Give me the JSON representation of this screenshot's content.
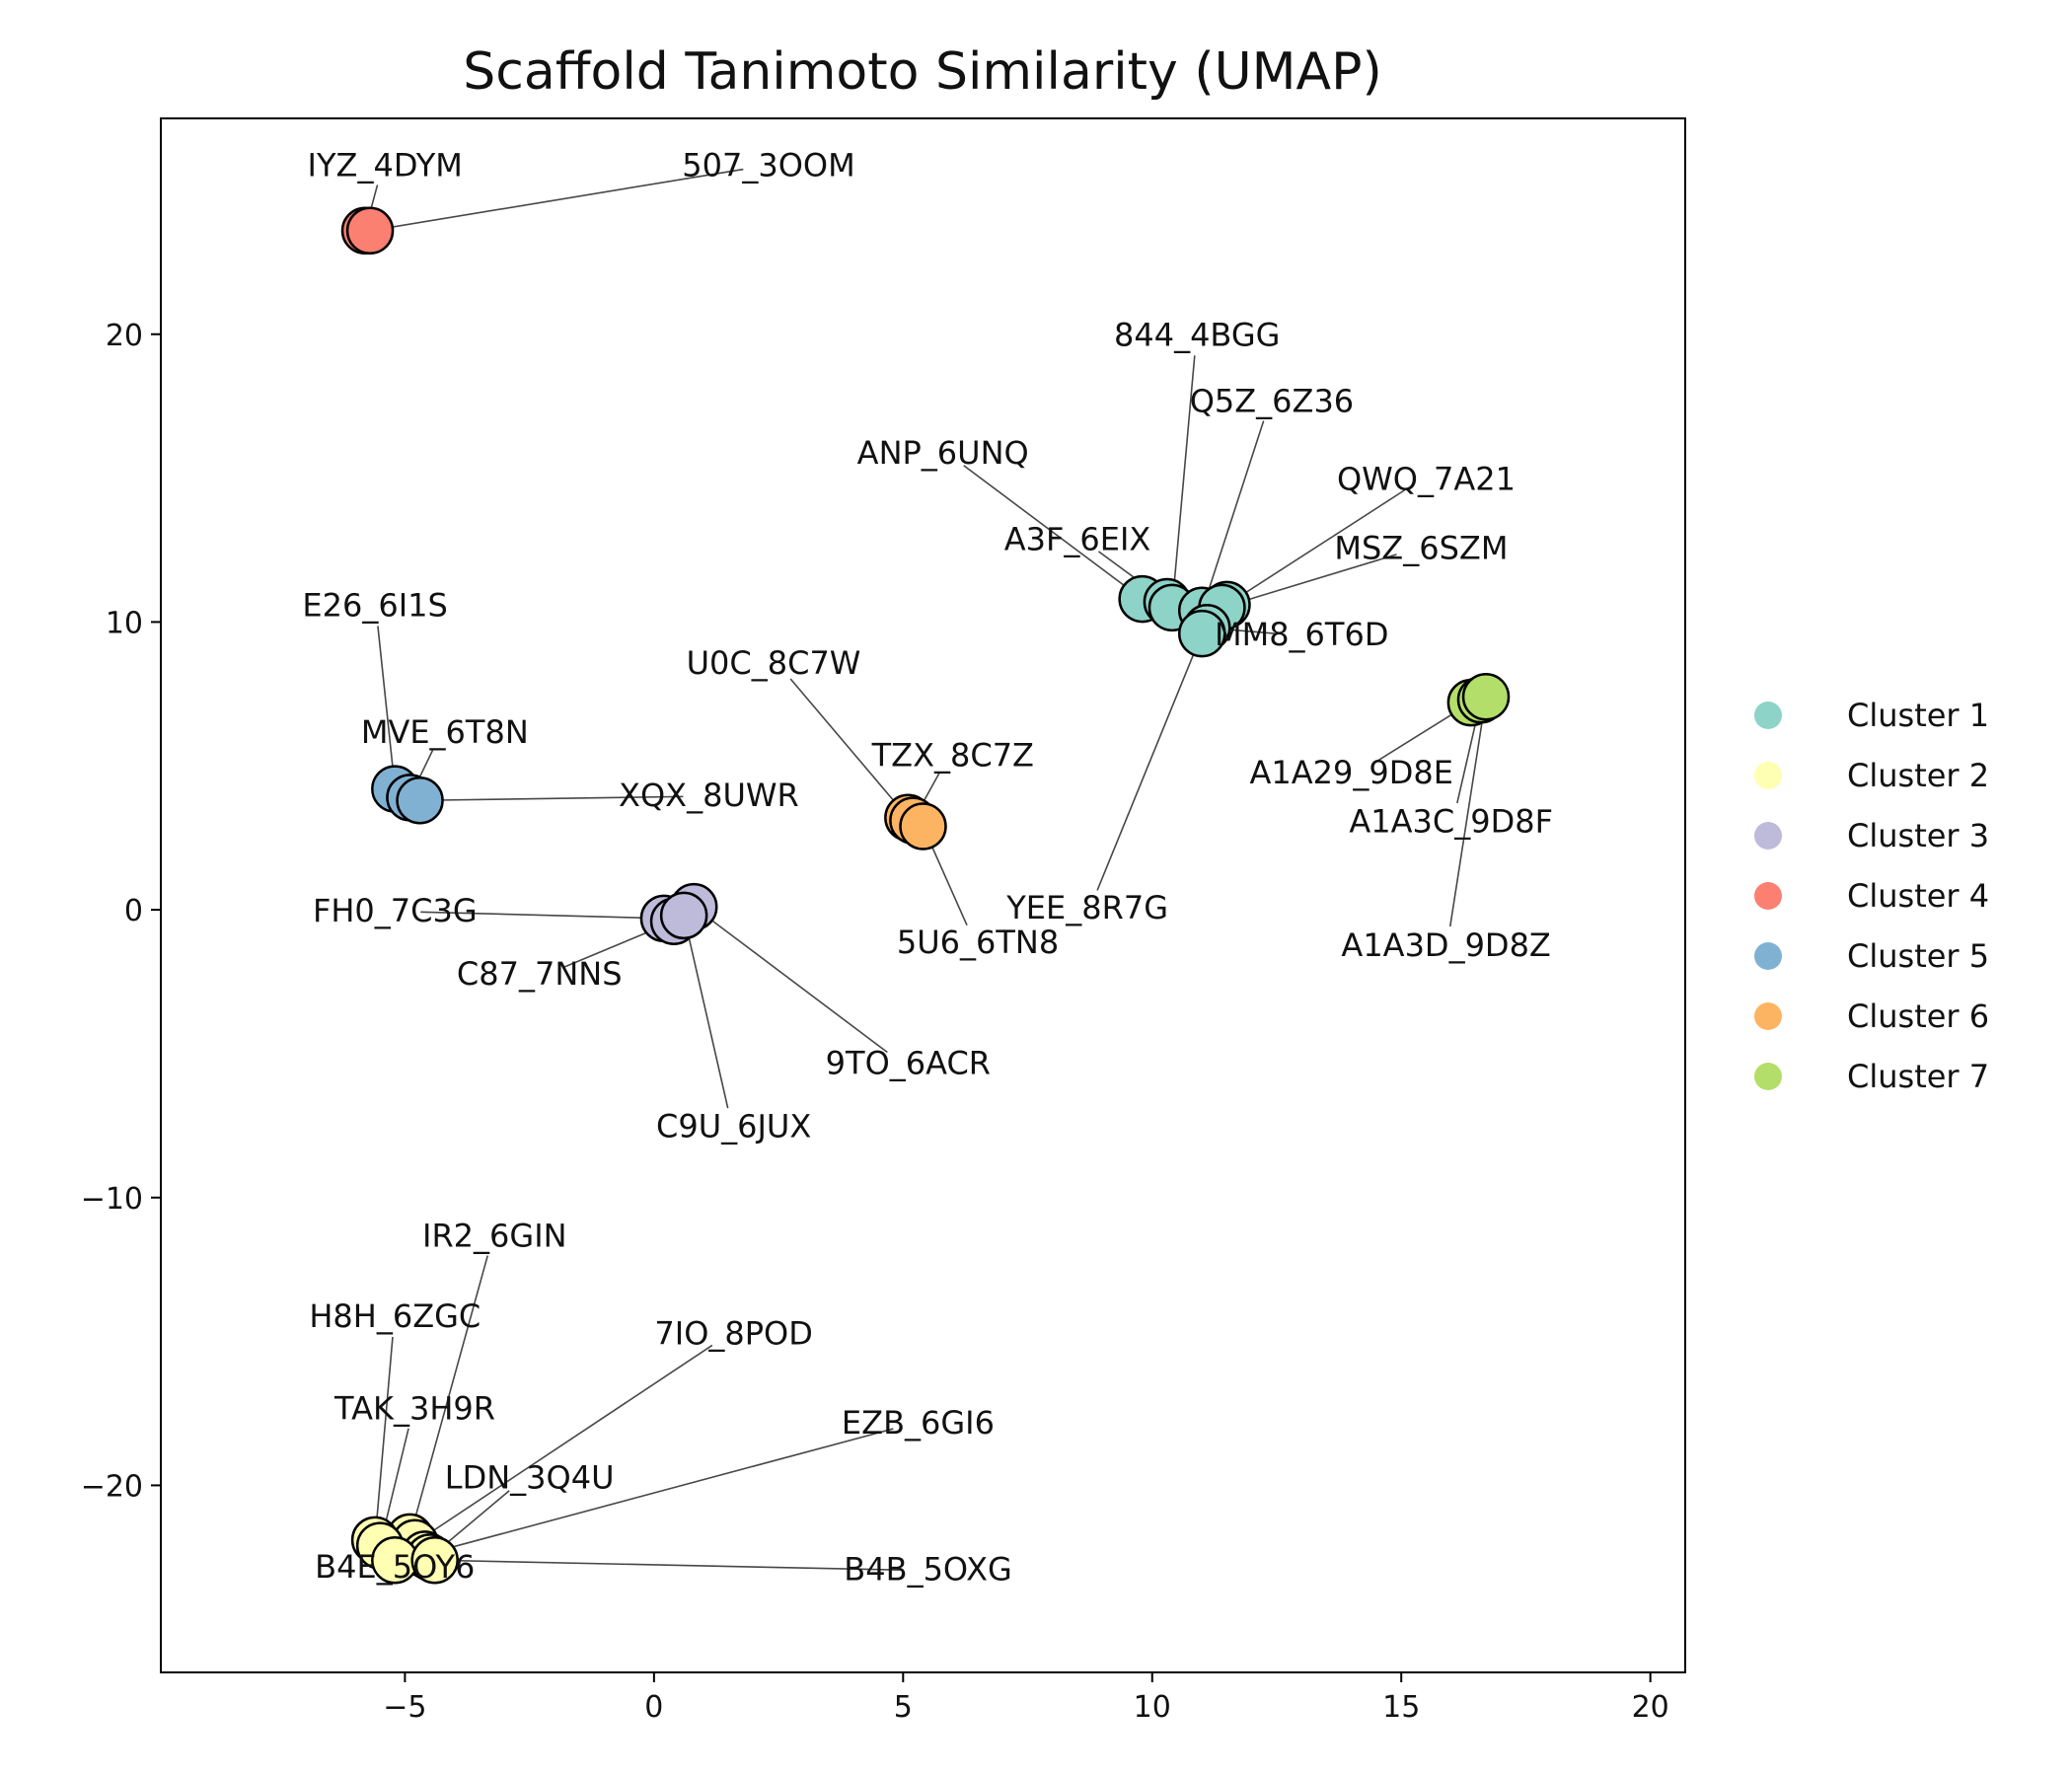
{
  "chart_data": {
    "type": "scatter",
    "title": "Scaffold Tanimoto Similarity (UMAP)",
    "xlabel": "",
    "ylabel": "",
    "xlim": [
      -9.9,
      20.7
    ],
    "ylim": [
      -26.5,
      27.5
    ],
    "xticks": [
      -5,
      0,
      5,
      10,
      15,
      20
    ],
    "yticks": [
      -20,
      -10,
      0,
      10,
      20
    ],
    "xtick_labels": [
      "−5",
      "0",
      "5",
      "10",
      "15",
      "20"
    ],
    "ytick_labels": [
      "−20",
      "−10",
      "0",
      "10",
      "20"
    ],
    "grid": false,
    "legend_position": "right",
    "series": [
      {
        "name": "Cluster 1",
        "color": "#8dd3c7",
        "points": [
          {
            "label": "ANP_6UNQ",
            "x": 9.8,
            "y": 10.8,
            "label_x": 5.8,
            "label_y": 15.5
          },
          {
            "label": "A3F_6EIX",
            "x": 10.3,
            "y": 10.7,
            "label_x": 8.5,
            "label_y": 12.5
          },
          {
            "label": "844_4BGG",
            "x": 10.4,
            "y": 10.5,
            "label_x": 10.9,
            "label_y": 19.6
          },
          {
            "label": "Q5Z_6Z36",
            "x": 11.0,
            "y": 10.4,
            "label_x": 12.4,
            "label_y": 17.3
          },
          {
            "label": "QWQ_7A21",
            "x": 11.5,
            "y": 10.6,
            "label_x": 15.5,
            "label_y": 14.6
          },
          {
            "label": "MSZ_6SZM",
            "x": 11.4,
            "y": 10.5,
            "label_x": 15.4,
            "label_y": 12.2
          },
          {
            "label": "MM8_6T6D",
            "x": 11.1,
            "y": 9.8,
            "label_x": 13.0,
            "label_y": 9.2
          },
          {
            "label": "YEE_8R7G",
            "x": 11.0,
            "y": 9.6,
            "label_x": 8.7,
            "label_y": -0.3
          }
        ]
      },
      {
        "name": "Cluster 2",
        "color": "#ffffb3",
        "points": [
          {
            "label": "IR2_6GIN",
            "x": -4.9,
            "y": -21.8,
            "label_x": -3.2,
            "label_y": -11.7
          },
          {
            "label": "H8H_6ZGC",
            "x": -5.6,
            "y": -21.9,
            "label_x": -5.2,
            "label_y": -14.5
          },
          {
            "label": "7IO_8POD",
            "x": -4.8,
            "y": -22.0,
            "label_x": 1.6,
            "label_y": -15.1
          },
          {
            "label": "TAK_3H9R",
            "x": -5.5,
            "y": -22.1,
            "label_x": -4.8,
            "label_y": -17.7
          },
          {
            "label": "EZB_6GI6",
            "x": -4.6,
            "y": -22.4,
            "label_x": 5.3,
            "label_y": -18.2
          },
          {
            "label": "LDN_3Q4U",
            "x": -4.5,
            "y": -22.5,
            "label_x": -2.5,
            "label_y": -20.1
          },
          {
            "label": "B4E_5OY6",
            "x": -5.2,
            "y": -22.6,
            "label_x": -5.2,
            "label_y": -23.2
          },
          {
            "label": "B4B_5OXG",
            "x": -4.4,
            "y": -22.6,
            "label_x": 5.5,
            "label_y": -23.3
          }
        ]
      },
      {
        "name": "Cluster 3",
        "color": "#bebada",
        "points": [
          {
            "label": "FH0_7C3G",
            "x": 0.2,
            "y": -0.3,
            "label_x": -5.2,
            "label_y": -0.4
          },
          {
            "label": "C87_7NNS",
            "x": 0.4,
            "y": -0.4,
            "label_x": -2.3,
            "label_y": -2.6
          },
          {
            "label": "9TO_6ACR",
            "x": 0.8,
            "y": 0.1,
            "label_x": 5.1,
            "label_y": -5.7
          },
          {
            "label": "C9U_6JUX",
            "x": 0.6,
            "y": -0.2,
            "label_x": 1.6,
            "label_y": -7.9
          }
        ]
      },
      {
        "name": "Cluster 4",
        "color": "#fb8072",
        "points": [
          {
            "label": "IYZ_4DYM",
            "x": -5.8,
            "y": 23.6,
            "label_x": -5.4,
            "label_y": 25.5
          },
          {
            "label": "507_3OOM",
            "x": -5.7,
            "y": 23.6,
            "label_x": 2.3,
            "label_y": 25.5
          }
        ]
      },
      {
        "name": "Cluster 5",
        "color": "#80b1d3",
        "points": [
          {
            "label": "E26_6I1S",
            "x": -5.2,
            "y": 4.2,
            "label_x": -5.6,
            "label_y": 10.2
          },
          {
            "label": "MVE_6T8N",
            "x": -4.9,
            "y": 3.9,
            "label_x": -4.2,
            "label_y": 5.8
          },
          {
            "label": "XQX_8UWR",
            "x": -4.7,
            "y": 3.8,
            "label_x": 1.1,
            "label_y": 3.6
          }
        ]
      },
      {
        "name": "Cluster 6",
        "color": "#fdb462",
        "points": [
          {
            "label": "U0C_8C7W",
            "x": 5.1,
            "y": 3.2,
            "label_x": 2.4,
            "label_y": 8.2
          },
          {
            "label": "TZX_8C7Z",
            "x": 5.2,
            "y": 3.1,
            "label_x": 6.0,
            "label_y": 5.0
          },
          {
            "label": "5U6_6TN8",
            "x": 5.4,
            "y": 2.9,
            "label_x": 6.5,
            "label_y": -1.5
          }
        ]
      },
      {
        "name": "Cluster 7",
        "color": "#b3de69",
        "points": [
          {
            "label": "A1A29_9D8E",
            "x": 16.4,
            "y": 7.2,
            "label_x": 14.0,
            "label_y": 4.4
          },
          {
            "label": "A1A3C_9D8F",
            "x": 16.6,
            "y": 7.3,
            "label_x": 16.0,
            "label_y": 2.7
          },
          {
            "label": "A1A3D_9D8Z",
            "x": 16.7,
            "y": 7.4,
            "label_x": 15.9,
            "label_y": -1.6
          }
        ]
      }
    ]
  }
}
